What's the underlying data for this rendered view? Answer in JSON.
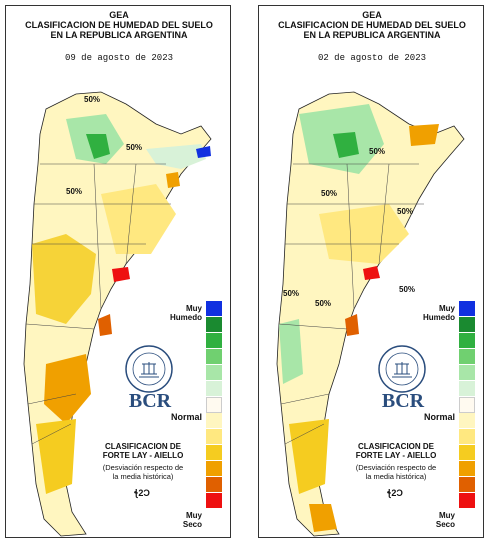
{
  "header": {
    "org": "GEA",
    "title_line1": "CLASIFICACION DE HUMEDAD DEL SUELO",
    "title_line2": "EN LA REPUBLICA ARGENTINA"
  },
  "panels": [
    {
      "date": "09 de agosto de 2023",
      "isolines": [
        "50%",
        "50%",
        "50%"
      ]
    },
    {
      "date": "02 de agosto de 2023",
      "isolines": [
        "50%",
        "50%",
        "50%",
        "50%",
        "50%",
        "50%"
      ]
    }
  ],
  "legend": {
    "top_label_1": "Muy",
    "top_label_2": "Humedo",
    "mid_label": "Normal",
    "bottom_label_1": "Muy",
    "bottom_label_2": "Seco",
    "colors": [
      "#1030e0",
      "#1a8a30",
      "#30b040",
      "#70d070",
      "#a8e6a8",
      "#d8f2d8",
      "#fffaf0",
      "#fff6c0",
      "#ffe880",
      "#f5cc20",
      "#f0a000",
      "#e06000",
      "#ee1010"
    ]
  },
  "classification": {
    "title_1": "CLASIFICACION DE",
    "title_2": "FORTE LAY - AIELLO",
    "note_1": "(Desviación respecto de",
    "note_2": "la media histórica)"
  },
  "brand": {
    "name": "BCR",
    "seal_text": "BOLSA DE COMERCIO DE ROSARIO",
    "logo_text": "ꞎ2Ɔ"
  }
}
